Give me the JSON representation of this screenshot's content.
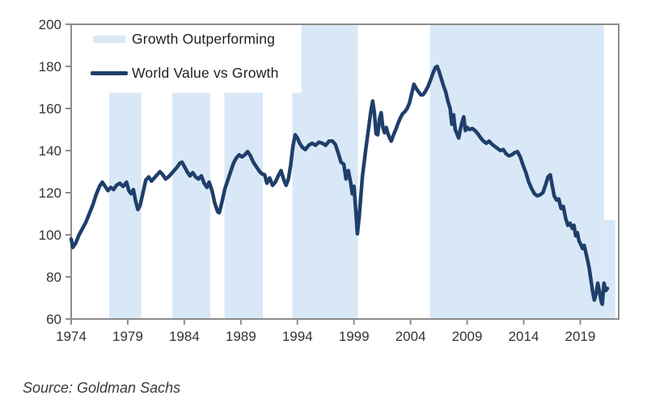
{
  "source_note": {
    "text": "Source: Goldman Sachs"
  },
  "chart_data": {
    "type": "line",
    "title": "",
    "xlabel": "",
    "ylabel": "",
    "grid": false,
    "legend_position": "top-left-inside",
    "xlim": [
      1974,
      2022.4
    ],
    "ylim": [
      60,
      200
    ],
    "x_ticks": [
      1974,
      1979,
      1984,
      1989,
      1994,
      1999,
      2004,
      2009,
      2014,
      2019
    ],
    "y_ticks": [
      60,
      80,
      100,
      120,
      140,
      160,
      180,
      200
    ],
    "colors": {
      "band": "#d9e8f6",
      "line": "#1f3f6b",
      "axis": "#8c8c8c",
      "tick_text": "#333333"
    },
    "legend": [
      {
        "label": "Growth Outperforming",
        "marker": "band"
      },
      {
        "label": "World Value vs Growth",
        "marker": "line"
      }
    ],
    "bands_meaning": "Shaded periods = Growth Outperforming",
    "bands": [
      {
        "x0": 1977.35,
        "x1": 1980.2,
        "y0": 60,
        "y1": 167.5
      },
      {
        "x0": 1982.95,
        "x1": 1986.3,
        "y0": 60,
        "y1": 167.5
      },
      {
        "x0": 1987.55,
        "x1": 1990.95,
        "y0": 60,
        "y1": 167.5
      },
      {
        "x0": 1993.55,
        "x1": 1999.35,
        "y0": 60,
        "y1": 167.5
      },
      {
        "x0": 1994.35,
        "x1": 1999.35,
        "y0": 60,
        "y1": 200
      },
      {
        "x0": 2005.7,
        "x1": 2021.1,
        "y0": 60,
        "y1": 200
      },
      {
        "x0": 2021.1,
        "x1": 2022.1,
        "y0": 60,
        "y1": 107
      }
    ],
    "series": [
      {
        "name": "World Value vs Growth",
        "points": [
          [
            1974.0,
            98
          ],
          [
            1974.15,
            94
          ],
          [
            1974.4,
            96
          ],
          [
            1974.7,
            100
          ],
          [
            1975.0,
            103
          ],
          [
            1975.3,
            106
          ],
          [
            1975.6,
            110
          ],
          [
            1975.9,
            114
          ],
          [
            1976.2,
            119
          ],
          [
            1976.5,
            123
          ],
          [
            1976.75,
            125
          ],
          [
            1977.0,
            123
          ],
          [
            1977.25,
            121
          ],
          [
            1977.5,
            122.5
          ],
          [
            1977.75,
            121.5
          ],
          [
            1978.0,
            123.5
          ],
          [
            1978.3,
            124.5
          ],
          [
            1978.6,
            123
          ],
          [
            1978.9,
            125
          ],
          [
            1979.1,
            121
          ],
          [
            1979.3,
            119.5
          ],
          [
            1979.5,
            121.5
          ],
          [
            1979.7,
            116
          ],
          [
            1979.9,
            112
          ],
          [
            1980.1,
            114
          ],
          [
            1980.35,
            120
          ],
          [
            1980.6,
            126
          ],
          [
            1980.85,
            127.5
          ],
          [
            1981.1,
            125.5
          ],
          [
            1981.35,
            127
          ],
          [
            1981.6,
            128.5
          ],
          [
            1981.85,
            130
          ],
          [
            1982.1,
            128.5
          ],
          [
            1982.35,
            126.5
          ],
          [
            1982.6,
            127.5
          ],
          [
            1982.85,
            129
          ],
          [
            1983.1,
            130.5
          ],
          [
            1983.35,
            132
          ],
          [
            1983.6,
            134
          ],
          [
            1983.8,
            134.5
          ],
          [
            1984.0,
            132.5
          ],
          [
            1984.25,
            130
          ],
          [
            1984.5,
            128
          ],
          [
            1984.75,
            129.5
          ],
          [
            1985.0,
            127.5
          ],
          [
            1985.25,
            126.5
          ],
          [
            1985.5,
            128
          ],
          [
            1985.75,
            124.5
          ],
          [
            1986.0,
            122.5
          ],
          [
            1986.2,
            125
          ],
          [
            1986.45,
            121
          ],
          [
            1986.7,
            115
          ],
          [
            1986.95,
            111
          ],
          [
            1987.1,
            110.5
          ],
          [
            1987.35,
            116
          ],
          [
            1987.6,
            122
          ],
          [
            1987.85,
            126
          ],
          [
            1988.1,
            130
          ],
          [
            1988.35,
            134
          ],
          [
            1988.6,
            136.5
          ],
          [
            1988.85,
            138
          ],
          [
            1989.1,
            137
          ],
          [
            1989.35,
            138
          ],
          [
            1989.6,
            139.5
          ],
          [
            1989.85,
            137.5
          ],
          [
            1990.1,
            134.5
          ],
          [
            1990.35,
            132.5
          ],
          [
            1990.6,
            130.5
          ],
          [
            1990.85,
            129
          ],
          [
            1991.1,
            128.5
          ],
          [
            1991.3,
            124.5
          ],
          [
            1991.55,
            127
          ],
          [
            1991.8,
            123.5
          ],
          [
            1992.05,
            125
          ],
          [
            1992.3,
            128
          ],
          [
            1992.55,
            130.5
          ],
          [
            1992.8,
            126
          ],
          [
            1993.0,
            123.5
          ],
          [
            1993.2,
            126.5
          ],
          [
            1993.4,
            133
          ],
          [
            1993.6,
            142
          ],
          [
            1993.8,
            147.5
          ],
          [
            1994.0,
            146
          ],
          [
            1994.2,
            143.5
          ],
          [
            1994.45,
            141.5
          ],
          [
            1994.7,
            140.5
          ],
          [
            1995.0,
            142.5
          ],
          [
            1995.3,
            143.5
          ],
          [
            1995.6,
            142.5
          ],
          [
            1995.9,
            144
          ],
          [
            1996.2,
            143.5
          ],
          [
            1996.5,
            142.5
          ],
          [
            1996.8,
            144.5
          ],
          [
            1997.1,
            144.5
          ],
          [
            1997.35,
            143
          ],
          [
            1997.6,
            139
          ],
          [
            1997.85,
            134.5
          ],
          [
            1998.1,
            133.5
          ],
          [
            1998.3,
            126.5
          ],
          [
            1998.5,
            130.5
          ],
          [
            1998.7,
            125
          ],
          [
            1998.85,
            119.5
          ],
          [
            1999.0,
            123
          ],
          [
            1999.15,
            112
          ],
          [
            1999.3,
            100.5
          ],
          [
            1999.45,
            108
          ],
          [
            1999.6,
            118
          ],
          [
            1999.75,
            128
          ],
          [
            1999.9,
            134.5
          ],
          [
            2000.05,
            141
          ],
          [
            2000.2,
            147
          ],
          [
            2000.35,
            153
          ],
          [
            2000.5,
            159
          ],
          [
            2000.65,
            163.5
          ],
          [
            2000.8,
            158
          ],
          [
            2000.95,
            148
          ],
          [
            2001.1,
            147.5
          ],
          [
            2001.25,
            155
          ],
          [
            2001.4,
            158
          ],
          [
            2001.55,
            151
          ],
          [
            2001.7,
            148.5
          ],
          [
            2001.85,
            151
          ],
          [
            2002.0,
            148
          ],
          [
            2002.15,
            146
          ],
          [
            2002.3,
            144.5
          ],
          [
            2002.5,
            147.5
          ],
          [
            2002.7,
            150
          ],
          [
            2002.9,
            153
          ],
          [
            2003.1,
            155.5
          ],
          [
            2003.3,
            157.5
          ],
          [
            2003.5,
            158.5
          ],
          [
            2003.7,
            160
          ],
          [
            2003.9,
            162.5
          ],
          [
            2004.1,
            167
          ],
          [
            2004.3,
            171.5
          ],
          [
            2004.5,
            169.5
          ],
          [
            2004.7,
            168
          ],
          [
            2004.9,
            166.5
          ],
          [
            2005.1,
            166.5
          ],
          [
            2005.3,
            168
          ],
          [
            2005.55,
            170.5
          ],
          [
            2005.8,
            174
          ],
          [
            2006.0,
            177
          ],
          [
            2006.2,
            179.5
          ],
          [
            2006.35,
            180
          ],
          [
            2006.5,
            178
          ],
          [
            2006.7,
            174.5
          ],
          [
            2006.9,
            171
          ],
          [
            2007.1,
            168
          ],
          [
            2007.3,
            163.5
          ],
          [
            2007.5,
            160
          ],
          [
            2007.65,
            152.5
          ],
          [
            2007.8,
            157
          ],
          [
            2007.95,
            150
          ],
          [
            2008.1,
            148
          ],
          [
            2008.25,
            146
          ],
          [
            2008.4,
            150
          ],
          [
            2008.55,
            153.5
          ],
          [
            2008.7,
            156
          ],
          [
            2008.85,
            149.5
          ],
          [
            2009.0,
            151
          ],
          [
            2009.2,
            150
          ],
          [
            2009.45,
            150.5
          ],
          [
            2009.7,
            149.5
          ],
          [
            2009.95,
            148
          ],
          [
            2010.2,
            146
          ],
          [
            2010.45,
            144.5
          ],
          [
            2010.7,
            143.5
          ],
          [
            2010.95,
            144.5
          ],
          [
            2011.2,
            143
          ],
          [
            2011.45,
            142
          ],
          [
            2011.7,
            141
          ],
          [
            2011.95,
            140
          ],
          [
            2012.2,
            140.5
          ],
          [
            2012.45,
            138.5
          ],
          [
            2012.7,
            137.5
          ],
          [
            2012.95,
            138
          ],
          [
            2013.2,
            139
          ],
          [
            2013.45,
            139.5
          ],
          [
            2013.7,
            137
          ],
          [
            2013.95,
            133
          ],
          [
            2014.2,
            129.5
          ],
          [
            2014.45,
            125
          ],
          [
            2014.7,
            122
          ],
          [
            2014.95,
            119.5
          ],
          [
            2015.2,
            118.5
          ],
          [
            2015.45,
            119
          ],
          [
            2015.7,
            120
          ],
          [
            2015.95,
            124
          ],
          [
            2016.15,
            127.5
          ],
          [
            2016.35,
            128.5
          ],
          [
            2016.5,
            124
          ],
          [
            2016.7,
            118.5
          ],
          [
            2016.9,
            116.5
          ],
          [
            2017.1,
            117
          ],
          [
            2017.3,
            112.5
          ],
          [
            2017.5,
            113.5
          ],
          [
            2017.7,
            108
          ],
          [
            2017.9,
            104.5
          ],
          [
            2018.1,
            105.5
          ],
          [
            2018.3,
            103
          ],
          [
            2018.45,
            104.5
          ],
          [
            2018.6,
            99.5
          ],
          [
            2018.75,
            101
          ],
          [
            2018.9,
            97
          ],
          [
            2019.05,
            95.5
          ],
          [
            2019.2,
            93.5
          ],
          [
            2019.35,
            95
          ],
          [
            2019.5,
            91.5
          ],
          [
            2019.65,
            88
          ],
          [
            2019.8,
            84
          ],
          [
            2019.95,
            78.5
          ],
          [
            2020.1,
            73
          ],
          [
            2020.25,
            69
          ],
          [
            2020.4,
            72
          ],
          [
            2020.55,
            77
          ],
          [
            2020.7,
            73
          ],
          [
            2020.85,
            68.5
          ],
          [
            2020.95,
            67
          ],
          [
            2021.1,
            77
          ],
          [
            2021.25,
            73.5
          ],
          [
            2021.4,
            74.5
          ]
        ]
      }
    ]
  }
}
